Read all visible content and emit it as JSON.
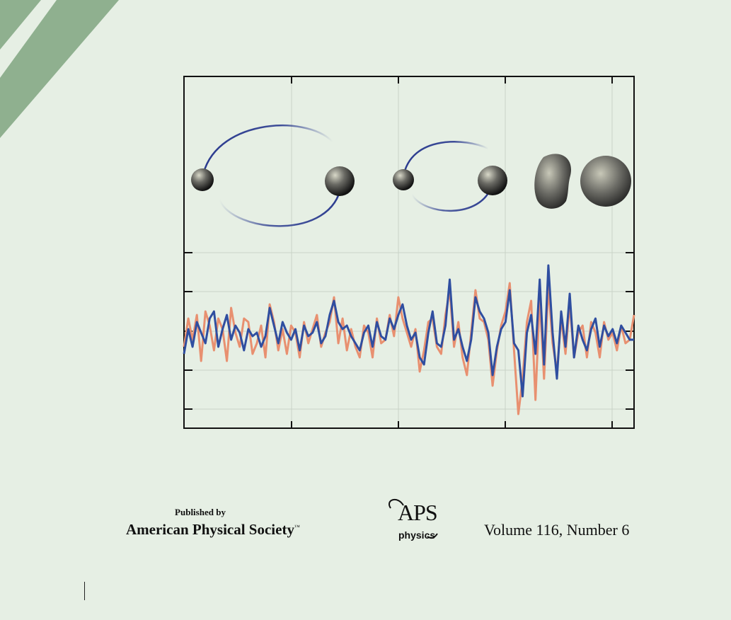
{
  "publisher": {
    "published_by": "Published by",
    "society": "American Physical Society",
    "trademark": "™"
  },
  "logo": {
    "word": "APS",
    "sub": "physics"
  },
  "issue": {
    "volume_line": "Volume 116, Number 6"
  },
  "colors": {
    "background": "#e6efe4",
    "stripe": "#8fb08f",
    "orbit": "#2b3b8f",
    "signal_blue": "#2f4ea0",
    "signal_orange": "#e89070"
  },
  "chart_data": {
    "type": "line",
    "title": "",
    "xlabel": "",
    "ylabel": "",
    "grid": true,
    "ylim": [
      -2.4,
      2.4
    ],
    "x_ticks_count": 5,
    "y_ticks_count": 5,
    "x": [
      0,
      1,
      2,
      3,
      4,
      5,
      6,
      7,
      8,
      9,
      10,
      11,
      12,
      13,
      14,
      15,
      16,
      17,
      18,
      19,
      20,
      21,
      22,
      23,
      24,
      25,
      26,
      27,
      28,
      29,
      30,
      31,
      32,
      33,
      34,
      35,
      36,
      37,
      38,
      39,
      40,
      41,
      42,
      43,
      44,
      45,
      46,
      47,
      48,
      49,
      50,
      51,
      52,
      53,
      54,
      55,
      56,
      57,
      58,
      59,
      60,
      61,
      62,
      63,
      64,
      65,
      66,
      67,
      68,
      69,
      70,
      71,
      72,
      73,
      74,
      75,
      76,
      77,
      78,
      79,
      80,
      81,
      82,
      83,
      84,
      85,
      86,
      87,
      88,
      89,
      90,
      91,
      92,
      93,
      94,
      95,
      96,
      97,
      98,
      99,
      100,
      101,
      102,
      103,
      104,
      105
    ],
    "series": [
      {
        "values": [
          -0.5,
          0.2,
          -0.3,
          0.4,
          0.1,
          -0.2,
          0.5,
          0.7,
          -0.3,
          0.2,
          0.6,
          -0.1,
          0.3,
          0.1,
          -0.4,
          0.2,
          0.0,
          0.1,
          -0.3,
          0.0,
          0.8,
          0.3,
          -0.2,
          0.4,
          0.1,
          -0.1,
          0.2,
          -0.4,
          0.3,
          0.0,
          0.1,
          0.4,
          -0.2,
          0.0,
          0.6,
          1.0,
          0.4,
          0.2,
          0.3,
          0.0,
          -0.2,
          -0.4,
          0.1,
          0.3,
          -0.3,
          0.4,
          0.0,
          -0.1,
          0.5,
          0.2,
          0.6,
          0.9,
          0.3,
          -0.1,
          0.1,
          -0.6,
          -0.8,
          0.1,
          0.7,
          -0.2,
          -0.3,
          0.3,
          1.6,
          -0.1,
          0.2,
          -0.3,
          -0.7,
          -0.1,
          1.1,
          0.7,
          0.5,
          0.1,
          -1.1,
          -0.3,
          0.2,
          0.4,
          1.3,
          -0.2,
          -0.4,
          -1.7,
          0.1,
          0.6,
          -0.5,
          1.6,
          -0.8,
          2.0,
          0.1,
          -1.2,
          0.7,
          -0.3,
          1.2,
          -0.6,
          0.3,
          -0.1,
          -0.4,
          0.2,
          0.5,
          -0.3,
          0.3,
          0.0,
          0.2,
          -0.2,
          0.3,
          0.1,
          -0.1,
          -0.1
        ],
        "color": "#2f4ea0"
      },
      {
        "values": [
          -0.3,
          0.5,
          -0.1,
          0.6,
          -0.7,
          0.7,
          0.3,
          -0.4,
          0.5,
          0.2,
          -0.7,
          0.8,
          0.1,
          -0.3,
          0.5,
          0.4,
          -0.5,
          -0.2,
          0.3,
          -0.6,
          0.9,
          0.4,
          -0.4,
          0.2,
          -0.5,
          0.3,
          0.1,
          -0.6,
          0.4,
          -0.2,
          0.2,
          0.6,
          -0.3,
          0.1,
          0.4,
          1.1,
          -0.2,
          0.5,
          -0.4,
          0.2,
          -0.3,
          -0.6,
          0.3,
          0.1,
          -0.6,
          0.5,
          -0.2,
          -0.1,
          0.6,
          0.0,
          1.1,
          0.5,
          0.1,
          -0.3,
          0.2,
          -1.0,
          -0.4,
          0.4,
          0.5,
          -0.3,
          -0.5,
          0.6,
          1.3,
          -0.3,
          0.4,
          -0.6,
          -1.1,
          0.1,
          1.3,
          0.5,
          0.4,
          -0.1,
          -1.4,
          -0.4,
          0.3,
          0.7,
          1.5,
          -0.4,
          -2.2,
          -1.2,
          0.4,
          1.0,
          -1.8,
          1.1,
          -1.2,
          1.4,
          -0.2,
          -1.0,
          0.5,
          -0.5,
          0.9,
          -0.6,
          0.1,
          0.3,
          -0.6,
          0.4,
          0.1,
          -0.6,
          0.4,
          -0.1,
          0.1,
          -0.4,
          0.3,
          -0.2,
          -0.1,
          0.6
        ],
        "color": "#e89070"
      }
    ]
  }
}
